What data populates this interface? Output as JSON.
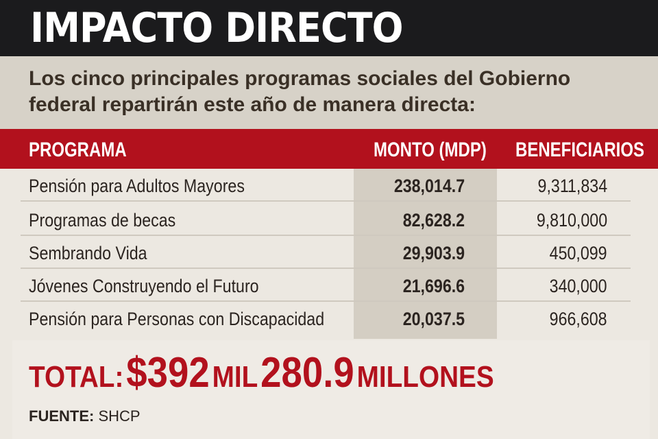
{
  "header": {
    "title": "IMPACTO DIRECTO"
  },
  "intro": {
    "line1": "Los cinco principales programas sociales del Gobierno",
    "line2": "federal repartirán este año de manera directa:"
  },
  "table": {
    "headers": {
      "programa": "PROGRAMA",
      "monto": "MONTO (MDP)",
      "beneficiarios": "BENEFICIARIOS"
    },
    "rows": [
      {
        "programa": "Pensión para Adultos Mayores",
        "monto": "238,014.7",
        "beneficiarios": "9,311,834"
      },
      {
        "programa": "Programas de becas",
        "monto": "82,628.2",
        "beneficiarios": "9,810,000"
      },
      {
        "programa": "Sembrando Vida",
        "monto": "29,903.9",
        "beneficiarios": "450,099"
      },
      {
        "programa": "Jóvenes Construyendo el Futuro",
        "monto": "21,696.6",
        "beneficiarios": "340,000"
      },
      {
        "programa": "Pensión para Personas con Discapacidad",
        "monto": "20,037.5",
        "beneficiarios": "966,608"
      }
    ]
  },
  "total": {
    "label": "TOTAL:",
    "amount1": "$392",
    "mil": "MIL",
    "amount2": "280.9",
    "millones": "MILLONES"
  },
  "source": {
    "label": "FUENTE:",
    "value": "SHCP"
  },
  "colors": {
    "header_bg": "#1b1b1d",
    "accent_red": "#b2111d",
    "intro_bg": "#d7d2c8"
  }
}
